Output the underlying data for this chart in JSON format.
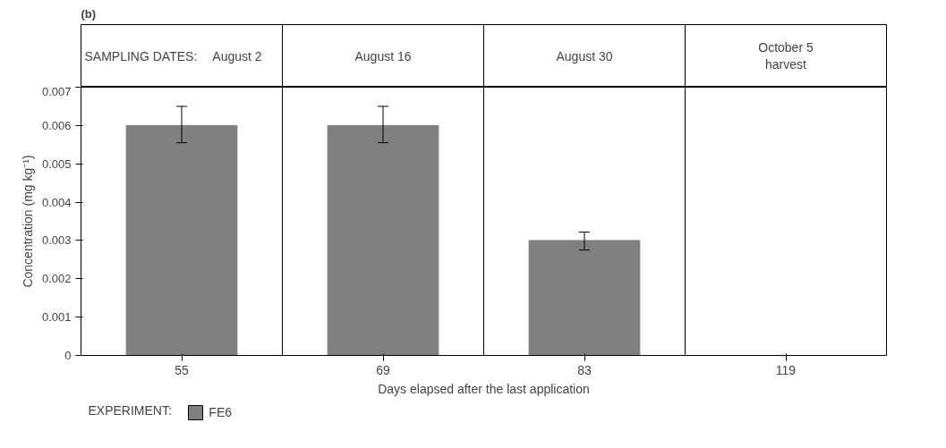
{
  "chart_data": {
    "type": "bar",
    "title": "(b)",
    "categories": [
      "55",
      "69",
      "83",
      "119"
    ],
    "series": [
      {
        "name": "FE6",
        "color": "#808080",
        "values": [
          0.006,
          0.006,
          0.003,
          0.0
        ],
        "errors": [
          [
            0.00555,
            0.0065
          ],
          [
            0.00555,
            0.0065
          ],
          [
            0.00275,
            0.00322
          ],
          null
        ]
      }
    ],
    "ylabel": "Concentration (mg kg⁻¹)",
    "xlabel": "Days elapsed after the last application",
    "ylim": [
      0,
      0.007
    ],
    "yticks": [
      0,
      0.001,
      0.002,
      0.003,
      0.004,
      0.005,
      0.006,
      0.007
    ],
    "annotations": [
      "SAMPLING DATES:",
      "August 2",
      "August 16",
      "August 30",
      "October 5\nharvest"
    ],
    "legend_title": "EXPERIMENT:",
    "legend": "bottom left",
    "grid": false
  }
}
